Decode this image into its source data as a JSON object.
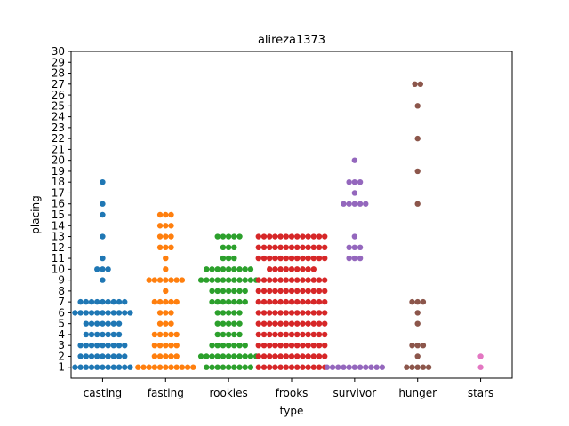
{
  "chart_data": {
    "type": "swarm",
    "title": "alireza1373",
    "xlabel": "type",
    "ylabel": "placing",
    "ylim": [
      0,
      30
    ],
    "yticks": [
      1,
      2,
      3,
      4,
      5,
      6,
      7,
      8,
      9,
      10,
      11,
      12,
      13,
      14,
      15,
      16,
      17,
      18,
      19,
      20,
      21,
      22,
      23,
      24,
      25,
      26,
      27,
      28,
      29,
      30
    ],
    "categories": [
      "casting",
      "fasting",
      "rookies",
      "frooks",
      "survivor",
      "hunger",
      "stars"
    ],
    "grid": false,
    "series": [
      {
        "category": "casting",
        "color": "#1f77b4",
        "counts": {
          "1": 11,
          "2": 9,
          "3": 9,
          "4": 7,
          "5": 7,
          "6": 11,
          "7": 9,
          "9": 1,
          "10": 3,
          "11": 1,
          "13": 1,
          "15": 1,
          "16": 1,
          "18": 1
        }
      },
      {
        "category": "fasting",
        "color": "#ff7f0e",
        "counts": {
          "1": 11,
          "2": 5,
          "3": 5,
          "4": 5,
          "5": 3,
          "6": 3,
          "7": 5,
          "8": 1,
          "9": 7,
          "10": 1,
          "11": 1,
          "12": 3,
          "13": 3,
          "14": 3,
          "15": 3
        }
      },
      {
        "category": "rookies",
        "color": "#2ca02c",
        "counts": {
          "1": 9,
          "2": 11,
          "3": 7,
          "4": 5,
          "5": 5,
          "6": 5,
          "7": 7,
          "8": 7,
          "9": 11,
          "10": 9,
          "11": 3,
          "12": 3,
          "13": 5
        }
      },
      {
        "category": "frooks",
        "color": "#d62728",
        "counts": {
          "1": 13,
          "2": 13,
          "3": 13,
          "4": 13,
          "5": 13,
          "6": 13,
          "7": 13,
          "8": 13,
          "9": 13,
          "10": 9,
          "11": 13,
          "12": 13,
          "13": 13
        }
      },
      {
        "category": "survivor",
        "color": "#9467bd",
        "counts": {
          "1": 11,
          "11": 3,
          "12": 3,
          "13": 1,
          "16": 5,
          "17": 1,
          "18": 3,
          "20": 1
        }
      },
      {
        "category": "hunger",
        "color": "#8c564b",
        "counts": {
          "1": 5,
          "2": 1,
          "3": 3,
          "5": 1,
          "6": 1,
          "7": 3,
          "16": 1,
          "19": 1,
          "22": 1,
          "25": 1,
          "27": 2
        }
      },
      {
        "category": "stars",
        "color": "#e377c2",
        "counts": {
          "1": 1,
          "2": 1
        }
      }
    ]
  }
}
